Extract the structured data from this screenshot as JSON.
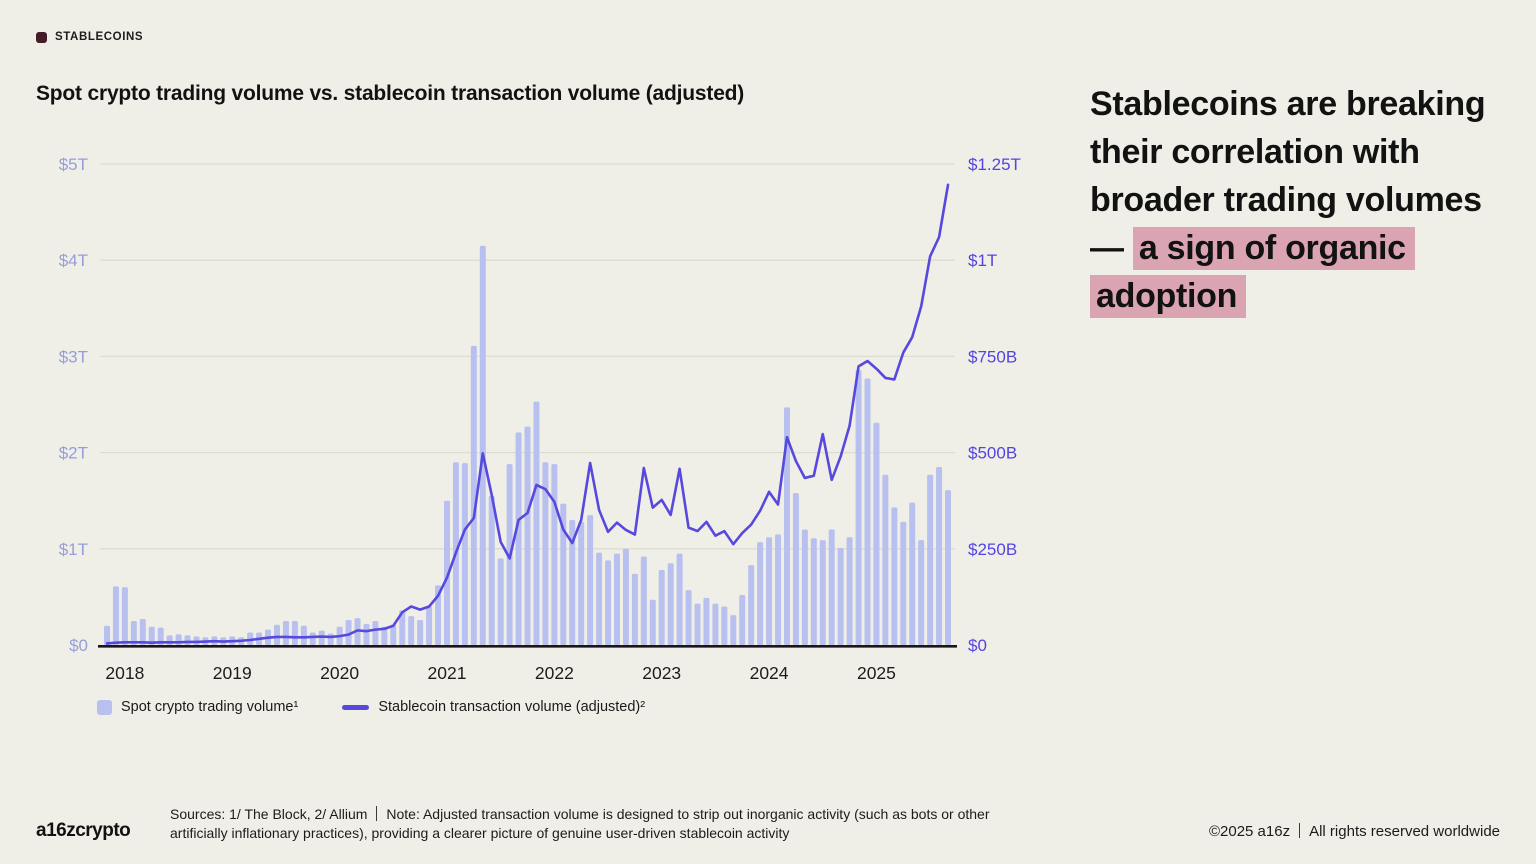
{
  "tag": {
    "label": "STABLECOINS",
    "square_color": "#441b27"
  },
  "title": "Spot crypto trading volume vs. stablecoin transaction volume (adjusted)",
  "headline": {
    "prefix": "Stablecoins are breaking their correlation with broader trading volumes — ",
    "highlight": "a sign of organic adoption",
    "highlight_color": "#daa4b3"
  },
  "legend": {
    "bar_label": "Spot crypto trading volume¹",
    "line_label": "Stablecoin transaction volume (adjusted)²"
  },
  "footer": {
    "logo": "a16zcrypto",
    "sources": "Sources: 1/ The Block, 2/ Allium",
    "note": "Note: Adjusted transaction volume is designed to strip out inorganic activity (such as bots or other artificially inflationary practices), providing a clearer picture of genuine user-driven stablecoin activity",
    "copyright": "©2025 a16z",
    "rights": "All rights reserved worldwide"
  },
  "chart_data": {
    "type": "bar+line",
    "title": "Spot crypto trading volume vs. stablecoin transaction volume (adjusted)",
    "months_start": "2017-11",
    "months_end": "2025-09",
    "x_year_labels": [
      "2018",
      "2019",
      "2020",
      "2021",
      "2022",
      "2023",
      "2024",
      "2025"
    ],
    "grid": true,
    "left_axis": {
      "unit": "USD trillions",
      "label_color": "#979dd9",
      "ticks": [
        {
          "label": "$5T",
          "value": 5
        },
        {
          "label": "$4T",
          "value": 4
        },
        {
          "label": "$3T",
          "value": 3
        },
        {
          "label": "$2T",
          "value": 2
        },
        {
          "label": "$1T",
          "value": 1
        },
        {
          "label": "$0",
          "value": 0
        }
      ]
    },
    "right_axis": {
      "unit": "USD billions",
      "label_color": "#5344e0",
      "ticks": [
        {
          "label": "$1.25T",
          "value": 1250
        },
        {
          "label": "$1T",
          "value": 1000
        },
        {
          "label": "$750B",
          "value": 750
        },
        {
          "label": "$500B",
          "value": 500
        },
        {
          "label": "$250B",
          "value": 250
        },
        {
          "label": "$0",
          "value": 0
        }
      ]
    },
    "series": [
      {
        "name": "Spot crypto trading volume",
        "type": "bar",
        "axis": "left",
        "unit": "$T",
        "color": "#b8c0ef",
        "values": [
          0.2,
          0.61,
          0.6,
          0.25,
          0.27,
          0.19,
          0.18,
          0.1,
          0.11,
          0.1,
          0.09,
          0.08,
          0.09,
          0.08,
          0.09,
          0.08,
          0.13,
          0.13,
          0.16,
          0.21,
          0.25,
          0.25,
          0.2,
          0.13,
          0.15,
          0.12,
          0.19,
          0.26,
          0.28,
          0.22,
          0.25,
          0.19,
          0.21,
          0.36,
          0.3,
          0.26,
          0.4,
          0.62,
          1.5,
          1.9,
          1.89,
          3.11,
          4.15,
          1.55,
          0.9,
          1.88,
          2.21,
          2.27,
          2.53,
          1.9,
          1.88,
          1.47,
          1.3,
          1.28,
          1.35,
          0.96,
          0.88,
          0.95,
          1.0,
          0.74,
          0.92,
          0.47,
          0.78,
          0.85,
          0.95,
          0.57,
          0.43,
          0.49,
          0.43,
          0.4,
          0.31,
          0.52,
          0.83,
          1.07,
          1.12,
          1.15,
          2.47,
          1.58,
          1.2,
          1.11,
          1.09,
          1.2,
          1.01,
          1.12,
          2.86,
          2.77,
          2.31,
          1.77,
          1.43,
          1.28,
          1.48,
          1.09,
          1.77,
          1.85,
          1.61
        ]
      },
      {
        "name": "Stablecoin transaction volume (adjusted)",
        "type": "line",
        "axis": "right",
        "unit": "$B",
        "color": "#5748de",
        "values": [
          4,
          6,
          7,
          7,
          7,
          6,
          7,
          7,
          7,
          8,
          8,
          9,
          10,
          9,
          10,
          11,
          13,
          16,
          19,
          21,
          21,
          20,
          20,
          21,
          22,
          21,
          23,
          27,
          38,
          36,
          40,
          42,
          50,
          85,
          100,
          92,
          100,
          128,
          175,
          240,
          300,
          330,
          498,
          390,
          268,
          225,
          325,
          343,
          416,
          405,
          372,
          300,
          265,
          325,
          473,
          351,
          294,
          318,
          299,
          287,
          460,
          357,
          377,
          338,
          458,
          305,
          296,
          320,
          284,
          296,
          262,
          291,
          313,
          349,
          398,
          365,
          540,
          478,
          434,
          440,
          548,
          429,
          490,
          570,
          724,
          738,
          718,
          694,
          690,
          760,
          800,
          880,
          1010,
          1060,
          1196
        ]
      }
    ]
  }
}
